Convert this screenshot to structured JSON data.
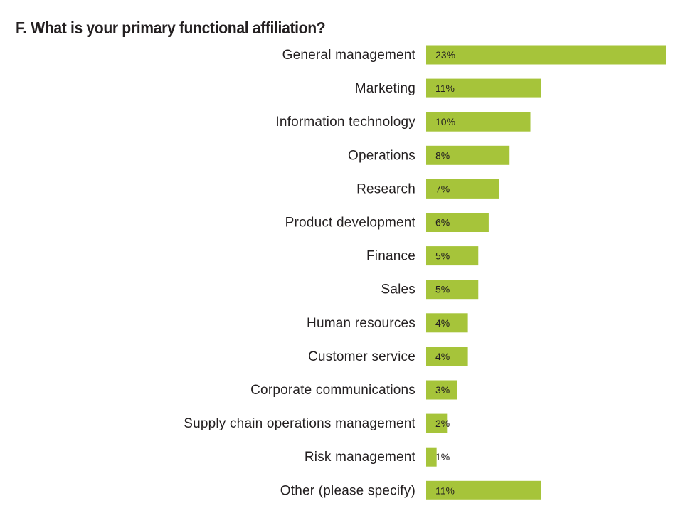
{
  "chart_data": {
    "type": "bar",
    "orientation": "horizontal",
    "title": "F. What is your primary functional affiliation?",
    "categories": [
      "General management",
      "Marketing",
      "Information technology",
      "Operations",
      "Research",
      "Product development",
      "Finance",
      "Sales",
      "Human resources",
      "Customer service",
      "Corporate communications",
      "Supply chain operations management",
      "Risk management",
      "Other (please specify)"
    ],
    "values": [
      23,
      11,
      10,
      8,
      7,
      6,
      5,
      5,
      4,
      4,
      3,
      2,
      1,
      11
    ],
    "value_labels": [
      "23%",
      "11%",
      "10%",
      "8%",
      "7%",
      "6%",
      "5%",
      "5%",
      "4%",
      "4%",
      "3%",
      "2%",
      "1%",
      "11%"
    ],
    "unit": "%",
    "bar_color": "#a6c43a",
    "xlim": [
      0,
      23
    ],
    "grid": false,
    "legend": "none"
  }
}
